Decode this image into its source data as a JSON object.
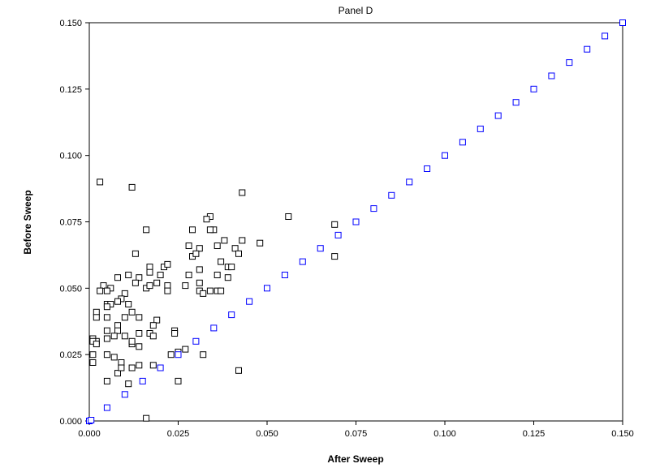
{
  "chart_data": {
    "type": "scatter",
    "title": "Panel D",
    "xlabel": "After Sweep",
    "ylabel": "Before Sweep",
    "xlim": [
      0,
      0.15
    ],
    "ylim": [
      0,
      0.15
    ],
    "x_ticks": [
      "0.000",
      "0.025",
      "0.050",
      "0.075",
      "0.100",
      "0.125",
      "0.150"
    ],
    "y_ticks": [
      "0.000",
      "0.025",
      "0.050",
      "0.075",
      "0.100",
      "0.125",
      "0.150"
    ],
    "x_tick_values": [
      0,
      0.025,
      0.05,
      0.075,
      0.1,
      0.125,
      0.15
    ],
    "y_tick_values": [
      0,
      0.025,
      0.05,
      0.075,
      0.1,
      0.125,
      0.15
    ],
    "grid": false,
    "marker": "open-square",
    "series": [
      {
        "color": "#000000",
        "points": [
          [
            0.003,
            0.09
          ],
          [
            0.012,
            0.088
          ],
          [
            0.043,
            0.086
          ],
          [
            0.034,
            0.077
          ],
          [
            0.056,
            0.077
          ],
          [
            0.035,
            0.072
          ],
          [
            0.034,
            0.072
          ],
          [
            0.016,
            0.072
          ],
          [
            0.029,
            0.072
          ],
          [
            0.069,
            0.074
          ],
          [
            0.043,
            0.068
          ],
          [
            0.033,
            0.076
          ],
          [
            0.038,
            0.068
          ],
          [
            0.028,
            0.066
          ],
          [
            0.041,
            0.065
          ],
          [
            0.048,
            0.067
          ],
          [
            0.036,
            0.066
          ],
          [
            0.031,
            0.065
          ],
          [
            0.013,
            0.063
          ],
          [
            0.029,
            0.062
          ],
          [
            0.042,
            0.063
          ],
          [
            0.03,
            0.063
          ],
          [
            0.069,
            0.062
          ],
          [
            0.037,
            0.06
          ],
          [
            0.017,
            0.058
          ],
          [
            0.021,
            0.058
          ],
          [
            0.022,
            0.059
          ],
          [
            0.039,
            0.058
          ],
          [
            0.04,
            0.058
          ],
          [
            0.031,
            0.057
          ],
          [
            0.017,
            0.056
          ],
          [
            0.02,
            0.055
          ],
          [
            0.036,
            0.055
          ],
          [
            0.011,
            0.055
          ],
          [
            0.028,
            0.055
          ],
          [
            0.039,
            0.054
          ],
          [
            0.014,
            0.054
          ],
          [
            0.008,
            0.054
          ],
          [
            0.019,
            0.052
          ],
          [
            0.022,
            0.051
          ],
          [
            0.027,
            0.051
          ],
          [
            0.031,
            0.052
          ],
          [
            0.016,
            0.05
          ],
          [
            0.01,
            0.048
          ],
          [
            0.017,
            0.051
          ],
          [
            0.036,
            0.049
          ],
          [
            0.004,
            0.051
          ],
          [
            0.006,
            0.05
          ],
          [
            0.005,
            0.049
          ],
          [
            0.003,
            0.049
          ],
          [
            0.013,
            0.052
          ],
          [
            0.022,
            0.049
          ],
          [
            0.031,
            0.049
          ],
          [
            0.037,
            0.049
          ],
          [
            0.034,
            0.049
          ],
          [
            0.032,
            0.048
          ],
          [
            0.009,
            0.046
          ],
          [
            0.008,
            0.045
          ],
          [
            0.005,
            0.044
          ],
          [
            0.006,
            0.044
          ],
          [
            0.005,
            0.043
          ],
          [
            0.011,
            0.044
          ],
          [
            0.012,
            0.041
          ],
          [
            0.002,
            0.041
          ],
          [
            0.002,
            0.039
          ],
          [
            0.01,
            0.039
          ],
          [
            0.005,
            0.039
          ],
          [
            0.014,
            0.039
          ],
          [
            0.019,
            0.038
          ],
          [
            0.018,
            0.036
          ],
          [
            0.008,
            0.036
          ],
          [
            0.005,
            0.034
          ],
          [
            0.008,
            0.034
          ],
          [
            0.024,
            0.034
          ],
          [
            0.014,
            0.033
          ],
          [
            0.017,
            0.033
          ],
          [
            0.024,
            0.033
          ],
          [
            0.018,
            0.032
          ],
          [
            0.01,
            0.032
          ],
          [
            0.007,
            0.032
          ],
          [
            0.005,
            0.031
          ],
          [
            0.001,
            0.031
          ],
          [
            0.002,
            0.03
          ],
          [
            0.001,
            0.03
          ],
          [
            0.002,
            0.029
          ],
          [
            0.012,
            0.029
          ],
          [
            0.014,
            0.028
          ],
          [
            0.012,
            0.03
          ],
          [
            0.027,
            0.027
          ],
          [
            0.025,
            0.026
          ],
          [
            0.023,
            0.025
          ],
          [
            0.032,
            0.025
          ],
          [
            0.001,
            0.025
          ],
          [
            0.005,
            0.025
          ],
          [
            0.007,
            0.024
          ],
          [
            0.012,
            0.02
          ],
          [
            0.009,
            0.022
          ],
          [
            0.014,
            0.021
          ],
          [
            0.018,
            0.021
          ],
          [
            0.001,
            0.022
          ],
          [
            0.008,
            0.018
          ],
          [
            0.009,
            0.02
          ],
          [
            0.042,
            0.019
          ],
          [
            0.005,
            0.015
          ],
          [
            0.025,
            0.015
          ],
          [
            0.011,
            0.014
          ],
          [
            0.016,
            0.001
          ]
        ]
      },
      {
        "color": "#0000ff",
        "points": [
          [
            0.0,
            0.0
          ],
          [
            0.0005,
            0.0003
          ],
          [
            0.005,
            0.005
          ],
          [
            0.01,
            0.01
          ],
          [
            0.015,
            0.015
          ],
          [
            0.02,
            0.02
          ],
          [
            0.025,
            0.025
          ],
          [
            0.03,
            0.03
          ],
          [
            0.035,
            0.035
          ],
          [
            0.04,
            0.04
          ],
          [
            0.045,
            0.045
          ],
          [
            0.05,
            0.05
          ],
          [
            0.055,
            0.055
          ],
          [
            0.06,
            0.06
          ],
          [
            0.065,
            0.065
          ],
          [
            0.07,
            0.07
          ],
          [
            0.075,
            0.075
          ],
          [
            0.08,
            0.08
          ],
          [
            0.085,
            0.085
          ],
          [
            0.09,
            0.09
          ],
          [
            0.095,
            0.095
          ],
          [
            0.1,
            0.1
          ],
          [
            0.105,
            0.105
          ],
          [
            0.11,
            0.11
          ],
          [
            0.115,
            0.115
          ],
          [
            0.12,
            0.12
          ],
          [
            0.125,
            0.125
          ],
          [
            0.13,
            0.13
          ],
          [
            0.135,
            0.135
          ],
          [
            0.14,
            0.14
          ],
          [
            0.145,
            0.145
          ],
          [
            0.15,
            0.15
          ]
        ]
      }
    ]
  }
}
